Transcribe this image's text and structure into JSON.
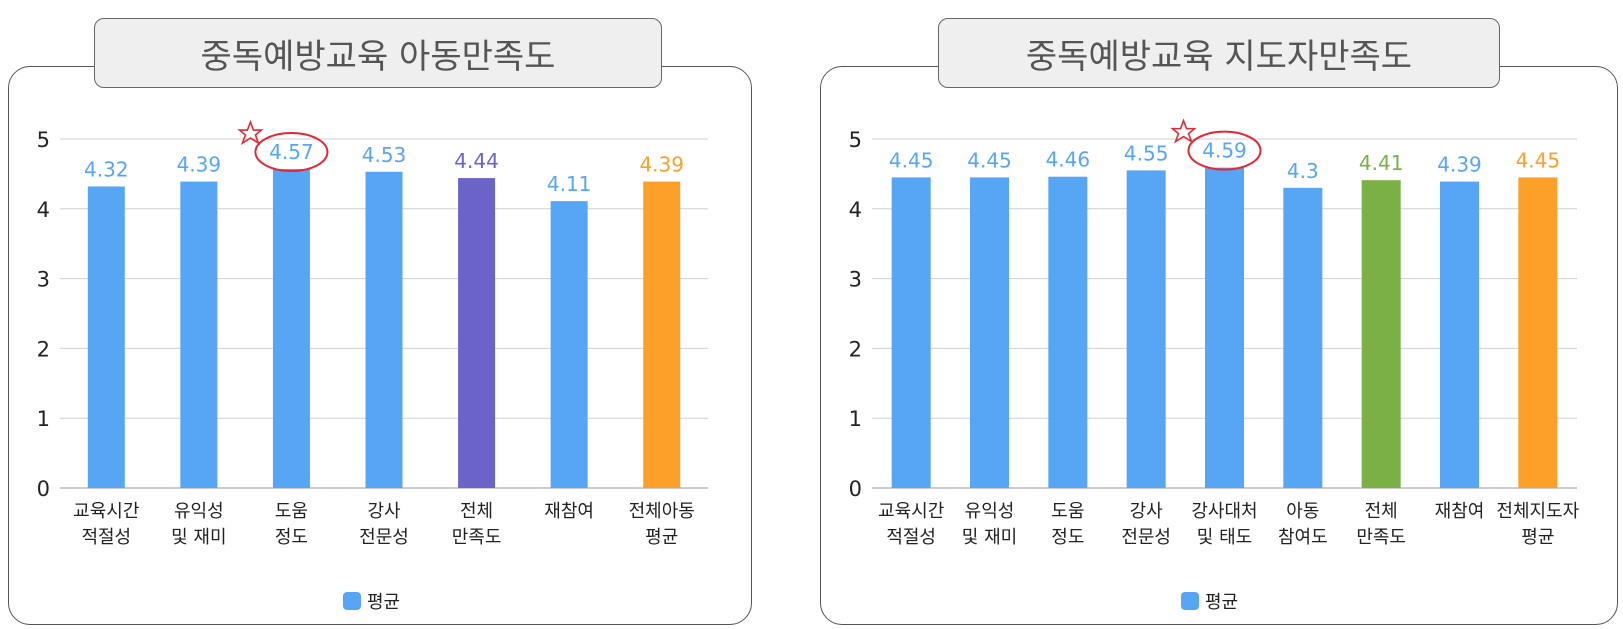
{
  "charts": [
    {
      "title": "중독예방교육 아동만족도",
      "legend": {
        "label": "평균",
        "color": "#57a6f5"
      },
      "chart_data": {
        "type": "bar",
        "categories": [
          [
            "교육시간",
            "적절성"
          ],
          [
            "유익성",
            "및 재미"
          ],
          [
            "도움",
            "정도"
          ],
          [
            "강사",
            "전문성"
          ],
          [
            "전체",
            "만족도"
          ],
          [
            "재참여"
          ],
          [
            "전체아동",
            "평균"
          ]
        ],
        "series": [
          {
            "name": "평균",
            "values": [
              4.32,
              4.39,
              4.57,
              4.53,
              4.44,
              4.11,
              4.39
            ]
          }
        ],
        "value_labels": [
          "4.32",
          "4.39",
          "4.57",
          "4.53",
          "4.44",
          "4.11",
          "4.39"
        ],
        "colors": [
          "#57a6f5",
          "#57a6f5",
          "#57a6f5",
          "#57a6f5",
          "#6a63c8",
          "#57a6f5",
          "#fca02a"
        ],
        "label_colors": [
          "#57a6f5",
          "#57a6f5",
          "#57a6f5",
          "#57a6f5",
          "#6a63c8",
          "#57a6f5",
          "#fca02a"
        ],
        "highlight_index": 2,
        "ylim": [
          0,
          5
        ],
        "yticks": [
          0,
          1,
          2,
          3,
          4,
          5
        ],
        "grid": true
      }
    },
    {
      "title": "중독예방교육 지도자만족도",
      "legend": {
        "label": "평균",
        "color": "#57a6f5"
      },
      "chart_data": {
        "type": "bar",
        "categories": [
          [
            "교육시간",
            "적절성"
          ],
          [
            "유익성",
            "및 재미"
          ],
          [
            "도움",
            "정도"
          ],
          [
            "강사",
            "전문성"
          ],
          [
            "강사대처",
            "및 태도"
          ],
          [
            "아동",
            "참여도"
          ],
          [
            "전체",
            "만족도"
          ],
          [
            "재참여"
          ],
          [
            "전체지도자",
            "평균"
          ]
        ],
        "series": [
          {
            "name": "평균",
            "values": [
              4.45,
              4.45,
              4.46,
              4.55,
              4.59,
              4.3,
              4.41,
              4.39,
              4.45
            ]
          }
        ],
        "value_labels": [
          "4.45",
          "4.45",
          "4.46",
          "4.55",
          "4.59",
          "4.3",
          "4.41",
          "4.39",
          "4.45"
        ],
        "colors": [
          "#57a6f5",
          "#57a6f5",
          "#57a6f5",
          "#57a6f5",
          "#57a6f5",
          "#57a6f5",
          "#7ab046",
          "#57a6f5",
          "#fca02a"
        ],
        "label_colors": [
          "#57a6f5",
          "#57a6f5",
          "#57a6f5",
          "#57a6f5",
          "#57a6f5",
          "#57a6f5",
          "#7ab046",
          "#57a6f5",
          "#fca02a"
        ],
        "highlight_index": 4,
        "ylim": [
          0,
          5
        ],
        "yticks": [
          0,
          1,
          2,
          3,
          4,
          5
        ],
        "grid": true
      }
    }
  ]
}
